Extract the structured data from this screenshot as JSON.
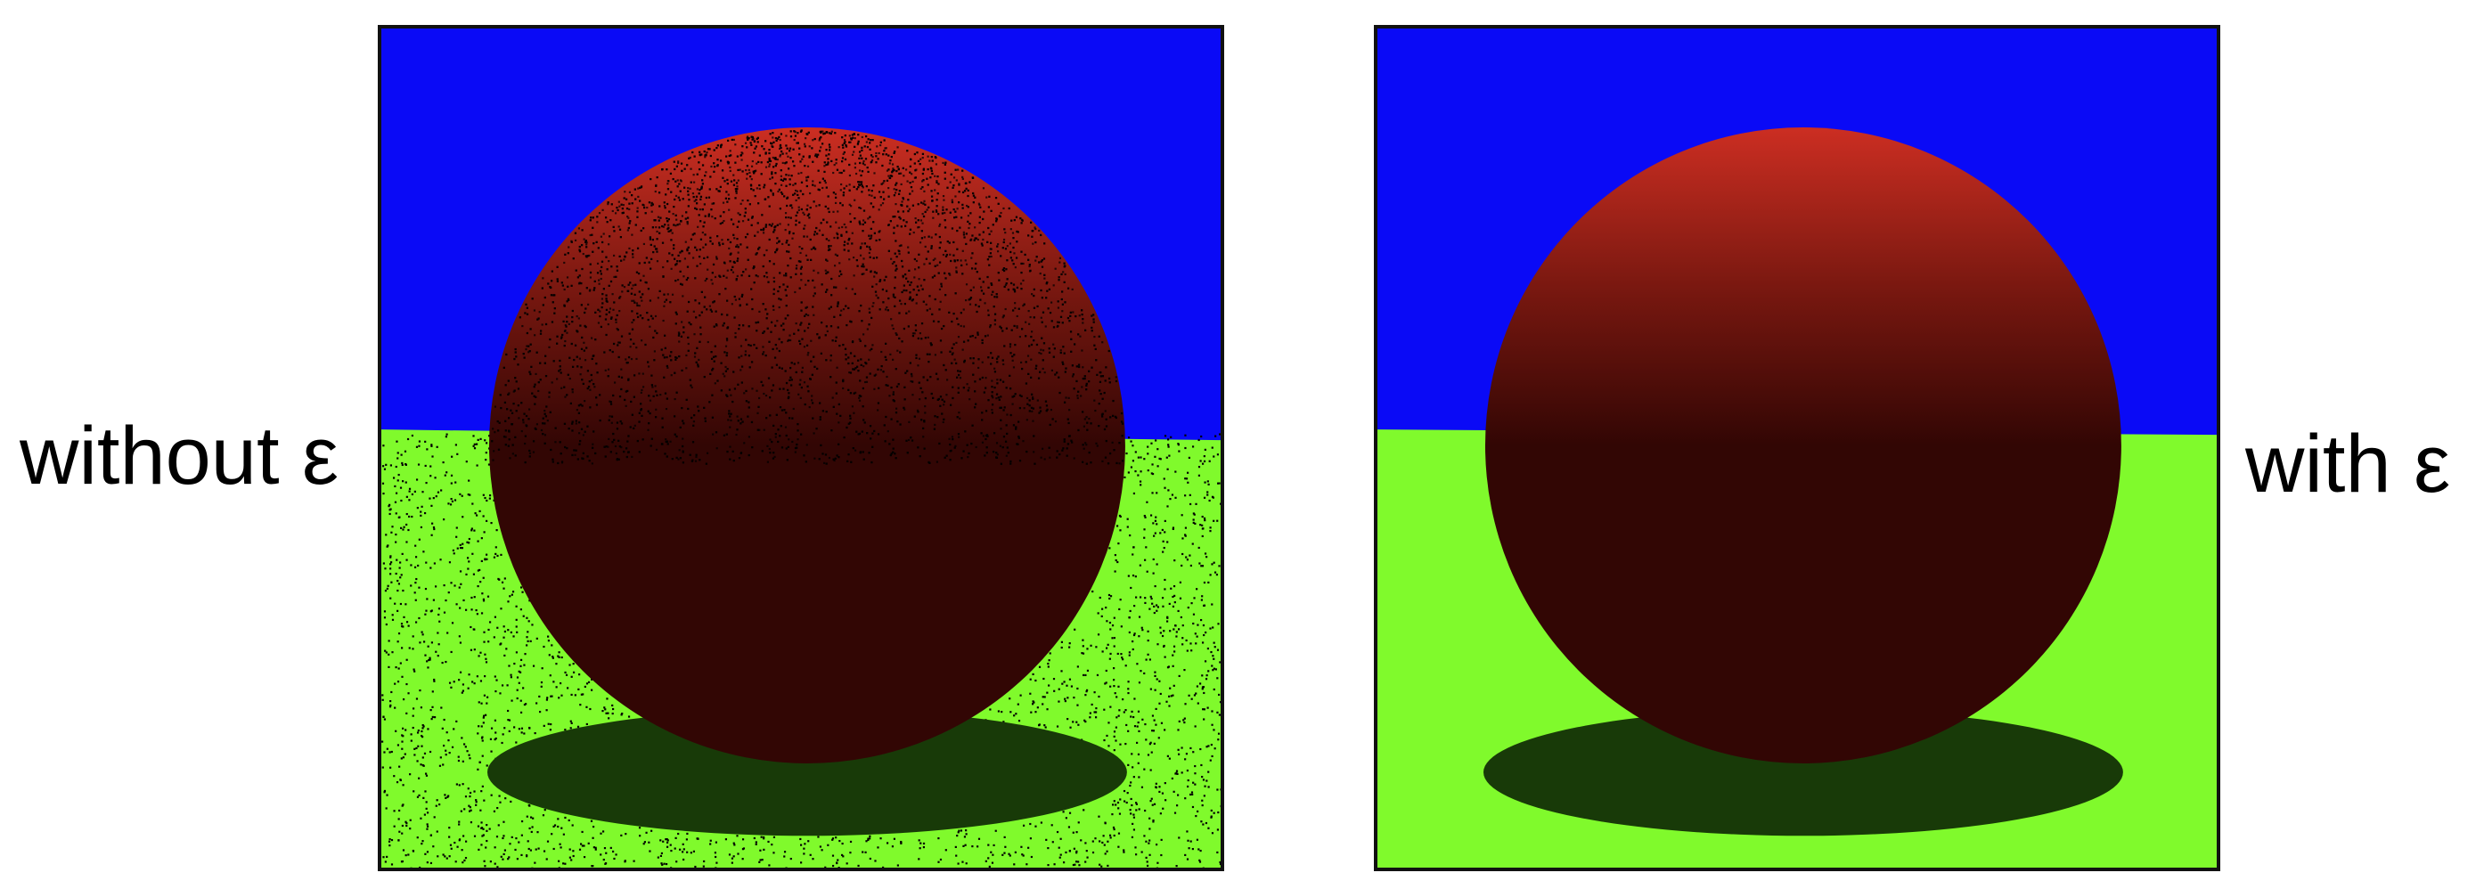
{
  "labels": {
    "left": "without ε",
    "right": "with ε"
  },
  "colors": {
    "sky": "#0a0af6",
    "ground": "#80fa2c",
    "shadow": "#183a08",
    "sphere_top": "#cc2e22",
    "sphere_mid": "#7a1810",
    "sphere_dark": "#320604",
    "noise": "#000000",
    "border": "#111111"
  },
  "panels": [
    {
      "name": "without-epsilon",
      "noisy": true
    },
    {
      "name": "with-epsilon",
      "noisy": false
    }
  ]
}
